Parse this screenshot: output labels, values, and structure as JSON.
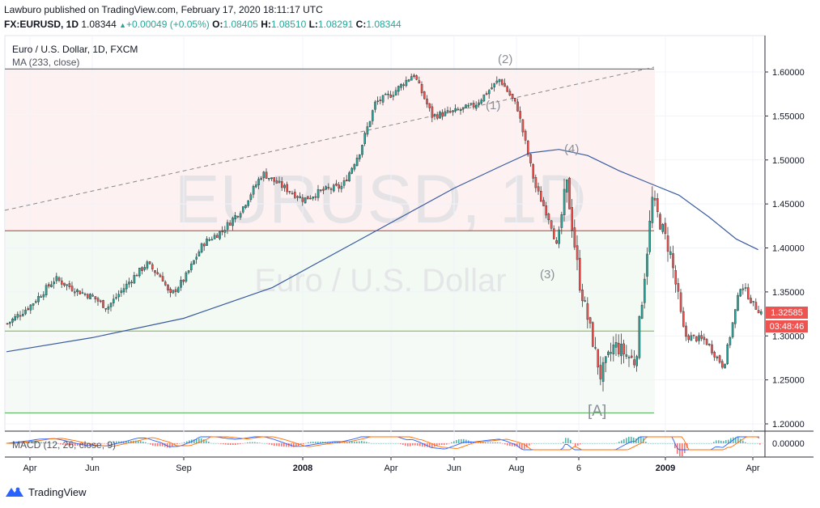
{
  "header": {
    "published_line": "Lawburo published on TradingView.com, February 17, 2020 18:11:17 UTC",
    "symbol": "FX:EURUSD, 1D",
    "last": "1.08344",
    "change": "+0.00049 (+0.05%)",
    "o_label": "O:",
    "o": "1.08405",
    "h_label": "H:",
    "h": "1.08510",
    "l_label": "L:",
    "l": "1.08291",
    "c_label": "C:",
    "c": "1.08344",
    "up_arrow": "▲"
  },
  "legend": {
    "title": "Euro / U.S. Dollar, 1D, FXCM",
    "ma": "MA (233, close)"
  },
  "watermark": {
    "symbol": "EURUSD, 1D",
    "name": "Euro / U.S. Dollar"
  },
  "wave_labels": [
    "(1)",
    "(2)",
    "(3)",
    "(4)",
    "[A]"
  ],
  "price_badge": {
    "price": "1.32585",
    "countdown": "03:48:46",
    "color": "#ef5350"
  },
  "macd_label": "MACD (12, 26, close, 9)",
  "macd_axis": "0.00000",
  "footer": {
    "brand": "TradingView",
    "brand_icon": "tradingview-logo-icon"
  },
  "colors": {
    "up": "#26a69a",
    "down": "#ef5350",
    "ma": "#3a5ba0",
    "red_line": "#c0392b",
    "green_line": "#4caf50"
  },
  "chart_data": {
    "type": "line",
    "title": "Euro / U.S. Dollar, 1D, FXCM",
    "y_ticks": [
      "1.60000",
      "1.55000",
      "1.50000",
      "1.45000",
      "1.40000",
      "1.35000",
      "1.30000",
      "1.25000",
      "1.20000"
    ],
    "ylim": [
      1.18,
      1.63
    ],
    "x_ticks": [
      "Apr",
      "Jun",
      "Sep",
      "2008",
      "Apr",
      "Jun",
      "Aug",
      "6",
      "2009",
      "Apr"
    ],
    "x_tick_dates": [
      "2007-04",
      "2007-06",
      "2007-09",
      "2008-01",
      "2008-04",
      "2008-06",
      "2008-08",
      "2008-10-06",
      "2009-01",
      "2009-04"
    ],
    "series": [
      {
        "name": "EURUSD close (approx)",
        "values": [
          [
            "2007-03-15",
            1.314
          ],
          [
            "2007-04-01",
            1.335
          ],
          [
            "2007-04-25",
            1.365
          ],
          [
            "2007-05-15",
            1.352
          ],
          [
            "2007-06-01",
            1.344
          ],
          [
            "2007-06-15",
            1.332
          ],
          [
            "2007-07-10",
            1.365
          ],
          [
            "2007-07-25",
            1.382
          ],
          [
            "2007-08-10",
            1.365
          ],
          [
            "2007-08-17",
            1.345
          ],
          [
            "2007-09-01",
            1.365
          ],
          [
            "2007-09-20",
            1.405
          ],
          [
            "2007-10-10",
            1.42
          ],
          [
            "2007-10-30",
            1.445
          ],
          [
            "2007-11-20",
            1.485
          ],
          [
            "2007-12-10",
            1.47
          ],
          [
            "2008-01-01",
            1.455
          ],
          [
            "2008-01-20",
            1.465
          ],
          [
            "2008-02-10",
            1.47
          ],
          [
            "2008-02-28",
            1.51
          ],
          [
            "2008-03-15",
            1.565
          ],
          [
            "2008-04-01",
            1.575
          ],
          [
            "2008-04-22",
            1.598
          ],
          [
            "2008-05-10",
            1.55
          ],
          [
            "2008-06-01",
            1.555
          ],
          [
            "2008-06-20",
            1.562
          ],
          [
            "2008-07-15",
            1.592
          ],
          [
            "2008-08-01",
            1.56
          ],
          [
            "2008-08-20",
            1.47
          ],
          [
            "2008-09-05",
            1.43
          ],
          [
            "2008-09-12",
            1.4
          ],
          [
            "2008-09-22",
            1.475
          ],
          [
            "2008-10-06",
            1.36
          ],
          [
            "2008-10-27",
            1.255
          ],
          [
            "2008-11-10",
            1.29
          ],
          [
            "2008-12-01",
            1.27
          ],
          [
            "2008-12-18",
            1.455
          ],
          [
            "2009-01-05",
            1.395
          ],
          [
            "2009-01-20",
            1.3
          ],
          [
            "2009-02-10",
            1.295
          ],
          [
            "2009-03-01",
            1.265
          ],
          [
            "2009-03-19",
            1.36
          ],
          [
            "2009-04-01",
            1.335
          ],
          [
            "2009-04-15",
            1.326
          ]
        ]
      },
      {
        "name": "MA (233, close)",
        "values": [
          [
            "2007-03-01",
            1.282
          ],
          [
            "2007-06-01",
            1.298
          ],
          [
            "2007-09-01",
            1.32
          ],
          [
            "2007-12-01",
            1.355
          ],
          [
            "2008-03-01",
            1.41
          ],
          [
            "2008-06-01",
            1.468
          ],
          [
            "2008-07-15",
            1.492
          ],
          [
            "2008-08-15",
            1.508
          ],
          [
            "2008-09-15",
            1.512
          ],
          [
            "2008-10-15",
            1.505
          ],
          [
            "2008-11-15",
            1.488
          ],
          [
            "2008-12-15",
            1.474
          ],
          [
            "2009-01-15",
            1.46
          ],
          [
            "2009-02-15",
            1.435
          ],
          [
            "2009-03-15",
            1.41
          ],
          [
            "2009-04-10",
            1.398
          ]
        ]
      }
    ],
    "horizontal_levels": [
      1.6035,
      1.4195,
      1.3055,
      1.2125
    ],
    "annotations": [
      "(1)",
      "(2)",
      "(3)",
      "(4)",
      "[A]"
    ],
    "macd_zero": 0.0
  }
}
